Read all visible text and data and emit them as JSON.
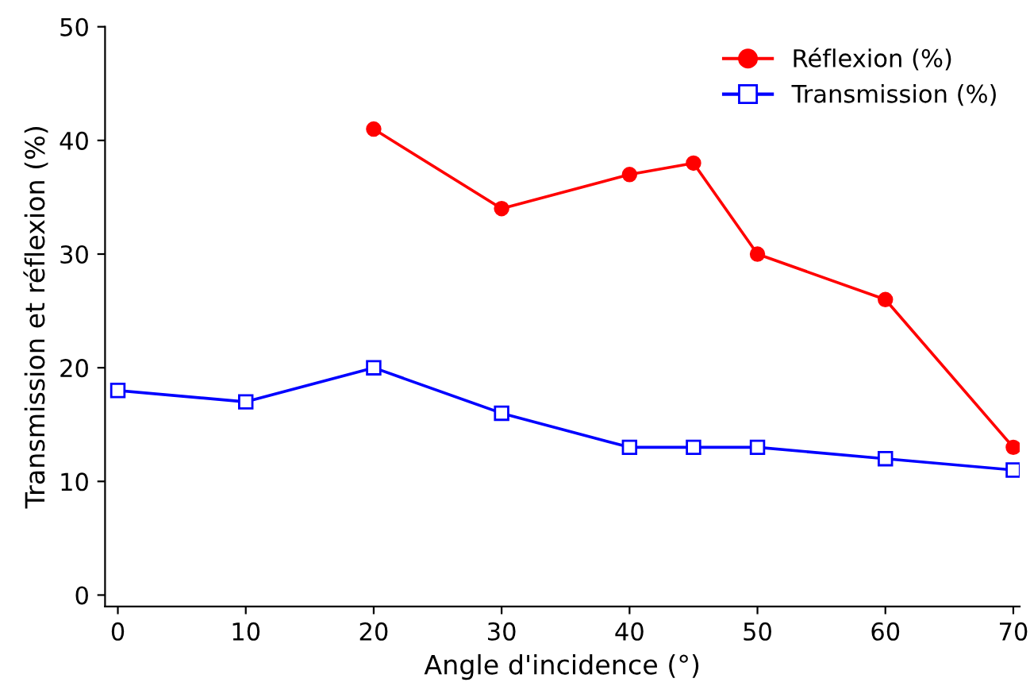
{
  "chart_data": {
    "type": "line",
    "xlabel": "Angle d'incidence (°)",
    "ylabel": "Transmission et réflexion (%)",
    "xlim": [
      -1,
      70.5
    ],
    "ylim": [
      -1,
      50
    ],
    "xticks": [
      0,
      10,
      20,
      30,
      40,
      50,
      60,
      70
    ],
    "yticks": [
      0,
      10,
      20,
      30,
      40,
      50
    ],
    "grid": false,
    "legend": "top right",
    "line_style": "solid",
    "series": [
      {
        "name": "Réflexion (%)",
        "color": "#ff0000",
        "marker": "circle",
        "x": [
          20,
          30,
          40,
          45,
          50,
          60,
          70
        ],
        "values": [
          41,
          34,
          37,
          38,
          30,
          26,
          13
        ]
      },
      {
        "name": "Transmission (%)",
        "color": "#0000ff",
        "marker": "square",
        "x": [
          0,
          10,
          20,
          30,
          40,
          45,
          50,
          60,
          70
        ],
        "values": [
          18,
          17,
          20,
          16,
          13,
          13,
          13,
          12,
          11
        ]
      }
    ]
  }
}
